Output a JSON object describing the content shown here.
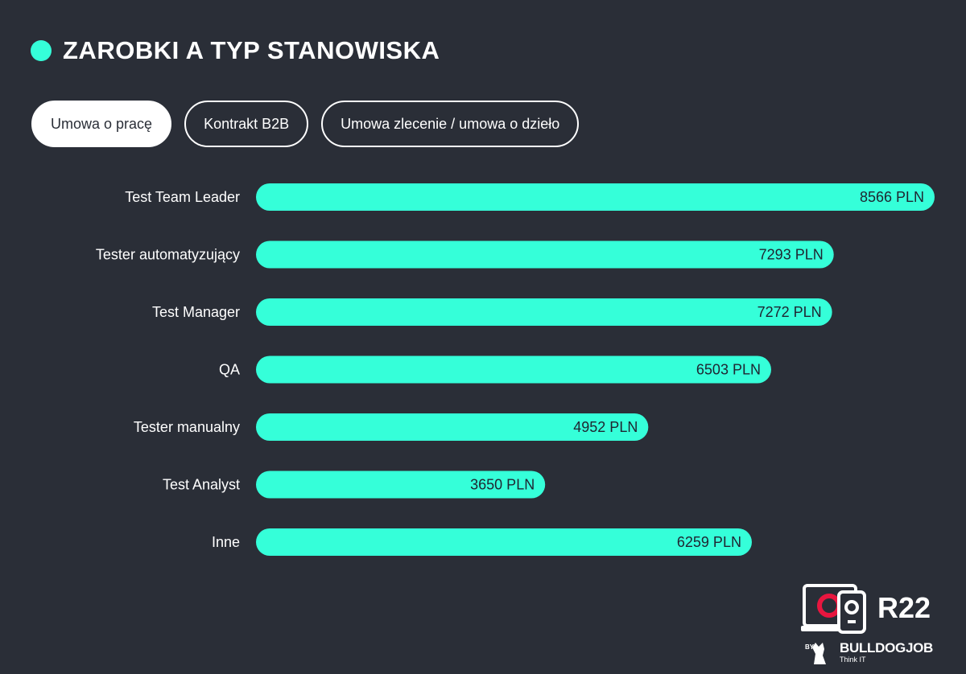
{
  "header": {
    "title": "ZAROBKI A TYP STANOWISKA"
  },
  "tabs": [
    {
      "label": "Umowa o pracę",
      "active": true
    },
    {
      "label": "Kontrakt B2B",
      "active": false
    },
    {
      "label": "Umowa zlecenie / umowa o dzieło",
      "active": false
    }
  ],
  "colors": {
    "background": "#2a2e37",
    "accent": "#35ffd9",
    "logo_accent": "#e8163f"
  },
  "chart_data": {
    "type": "bar",
    "orientation": "horizontal",
    "categories": [
      "Test Team Leader",
      "Tester automatyzujący",
      "Test Manager",
      "QA",
      "Tester manualny",
      "Test Analyst",
      "Inne"
    ],
    "values": [
      8566,
      7293,
      7272,
      6503,
      4952,
      3650,
      6259
    ],
    "value_labels": [
      "8566 PLN",
      "7293 PLN",
      "7272 PLN",
      "6503 PLN",
      "4952 PLN",
      "3650 PLN",
      "6259 PLN"
    ],
    "unit": "PLN",
    "xlim": [
      0,
      8566
    ],
    "grid": false
  },
  "branding": {
    "report": "R22",
    "by": "BY",
    "brand": "BULLDOGJOB",
    "tagline": "Think IT"
  }
}
